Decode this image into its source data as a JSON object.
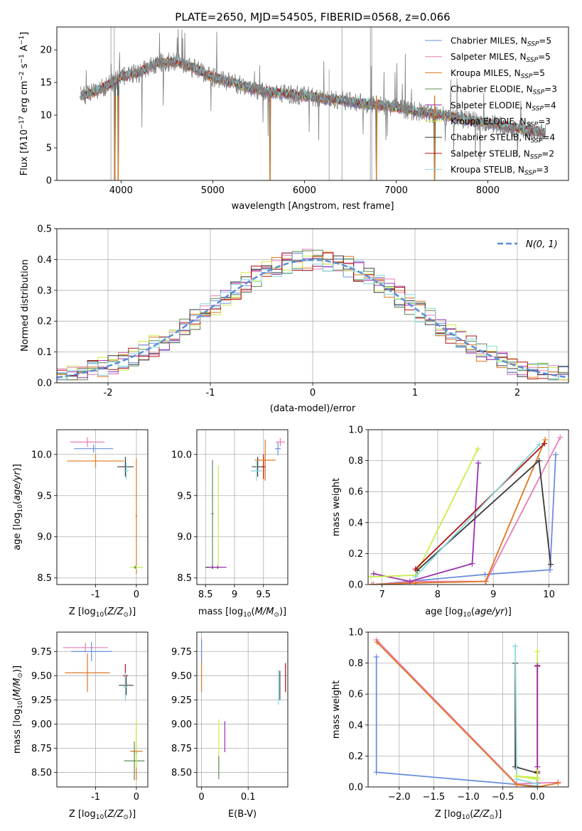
{
  "title": "PLATE=2650, MJD=54505, FIBERID=0568, z=0.066",
  "colors": {
    "Chabrier MILES": "#6a8fdc",
    "Salpeter MILES": "#e87db8",
    "Kroupa MILES": "#e0761f",
    "Chabrier ELODIE": "#5b8c55",
    "Salpeter ELODIE": "#9b2fb0",
    "Kroupa ELODIE": "#c8ee4a",
    "Chabrier STELIB": "#3a3a3a",
    "Salpeter STELIB": "#b01010",
    "Kroupa STELIB": "#86d8dc",
    "data": "#7f7f7f",
    "masked": "#b8b8b8"
  },
  "chart_data": [
    {
      "type": "line",
      "title": "PLATE=2650, MJD=54505, FIBERID=0568, z=0.066",
      "xlabel": "wavelength [Angstrom, rest frame]",
      "ylabel": "Flux [fλ10⁻¹⁷ erg cm⁻² s⁻¹ A⁻¹]",
      "xlim": [
        3300,
        8880
      ],
      "ylim": [
        0,
        23.5
      ],
      "xticks": [
        4000,
        5000,
        6000,
        7000,
        8000
      ],
      "yticks": [
        0,
        5,
        10,
        15,
        20
      ],
      "grid": false,
      "legend_position": "top-right",
      "legend": [
        {
          "label": "Chabrier MILES",
          "nssp": "5"
        },
        {
          "label": "Salpeter MILES",
          "nssp": "5"
        },
        {
          "label": "Kroupa MILES",
          "nssp": "5"
        },
        {
          "label": "Chabrier ELODIE",
          "nssp": "3"
        },
        {
          "label": "Salpeter ELODIE",
          "nssp": "4"
        },
        {
          "label": "Kroupa ELODIE",
          "nssp": "3"
        },
        {
          "label": "Chabrier STELIB",
          "nssp": "4"
        },
        {
          "label": "Salpeter STELIB",
          "nssp": "2"
        },
        {
          "label": "Kroupa STELIB",
          "nssp": "3"
        }
      ],
      "continuum": [
        [
          3600,
          13
        ],
        [
          3700,
          13.5
        ],
        [
          3850,
          14.5
        ],
        [
          4000,
          15.8
        ],
        [
          4200,
          16.5
        ],
        [
          4400,
          18
        ],
        [
          4600,
          18.2
        ],
        [
          4800,
          17.2
        ],
        [
          5000,
          15.8
        ],
        [
          5200,
          15
        ],
        [
          5400,
          14.2
        ],
        [
          5600,
          13.5
        ],
        [
          5800,
          13.3
        ],
        [
          6000,
          13
        ],
        [
          6200,
          12.5
        ],
        [
          6400,
          12.3
        ],
        [
          6600,
          11.9
        ],
        [
          6800,
          11.5
        ],
        [
          7000,
          11.2
        ],
        [
          7200,
          10.6
        ],
        [
          7400,
          10.2
        ],
        [
          7600,
          9.8
        ],
        [
          7800,
          9.2
        ],
        [
          8000,
          8.8
        ],
        [
          8200,
          8.3
        ],
        [
          8400,
          7.8
        ],
        [
          8600,
          7.3
        ]
      ],
      "drops": [
        [
          3933,
          0
        ],
        [
          3968,
          0
        ],
        [
          5625,
          0
        ],
        [
          6785,
          0
        ],
        [
          7420,
          0
        ]
      ]
    },
    {
      "type": "histogram",
      "xlabel": "(data-model)/error",
      "ylabel": "Normed distribution",
      "xlim": [
        -2.5,
        2.5
      ],
      "ylim": [
        0,
        0.5
      ],
      "xticks": [
        -2,
        -1,
        0,
        1,
        2
      ],
      "yticks": [
        0,
        0.1,
        0.2,
        0.3,
        0.4,
        0.5
      ],
      "grid": true,
      "legend_position": "top-right",
      "legend_label": "N(0, 1)",
      "bin_width": 0.1
    },
    {
      "type": "scatter",
      "xlabel": "Z [log10(Z/Z⊙)]",
      "ylabel": "age [log10(age/yr)]",
      "xlim": [
        -1.95,
        0.28
      ],
      "ylim": [
        8.42,
        10.3
      ],
      "xticks": [
        -1,
        0
      ],
      "yticks": [
        8.5,
        9.0,
        9.5,
        10.0
      ],
      "grid": true,
      "points": [
        {
          "model": "Salpeter MILES",
          "x": -1.2,
          "y": 10.15,
          "xerr": 0.42,
          "yerr": 0.06
        },
        {
          "model": "Chabrier MILES",
          "x": -1.05,
          "y": 10.07,
          "xerr": 0.48,
          "yerr": 0.05
        },
        {
          "model": "Kroupa MILES",
          "x": -1.0,
          "y": 9.92,
          "xerr": 0.7,
          "yerr": 0.08
        },
        {
          "model": "Chabrier STELIB",
          "x": -0.27,
          "y": 9.85,
          "xerr": 0.2,
          "yerr": 0.12
        },
        {
          "model": "Kroupa STELIB",
          "x": -0.25,
          "y": 9.8,
          "xerr": 0.06,
          "yerr": 0.1
        },
        {
          "model": "Kroupa MILES",
          "x": 0.0,
          "y": 9.25,
          "xerr": 0.02,
          "yerr": 0.7
        },
        {
          "model": "Kroupa ELODIE",
          "x": 0.0,
          "y": 8.63,
          "xerr": 0.16,
          "yerr": 0.02
        },
        {
          "model": "Chabrier ELODIE",
          "x": -0.03,
          "y": 8.63,
          "xerr": 0.03,
          "yerr": 0.02
        }
      ]
    },
    {
      "type": "scatter",
      "xlabel": "mass [log10(M/M⊙)]",
      "ylabel": "",
      "xlim": [
        8.35,
        9.92
      ],
      "ylim": [
        8.42,
        10.3
      ],
      "xticks": [
        8.5,
        9.0,
        9.5
      ],
      "yticks": [
        8.5,
        9.0,
        9.5,
        10.0
      ],
      "grid": true,
      "points": [
        {
          "model": "Chabrier ELODIE",
          "x": 8.62,
          "y": 9.28,
          "xerr": 0.02,
          "yerr": 0.65
        },
        {
          "model": "Chabrier STELIB",
          "x": 8.62,
          "y": 8.63,
          "xerr": 0.12,
          "yerr": 0.02
        },
        {
          "model": "Kroupa ELODIE",
          "x": 8.72,
          "y": 9.25,
          "xerr": 0.01,
          "yerr": 0.62
        },
        {
          "model": "Salpeter ELODIE",
          "x": 8.71,
          "y": 8.63,
          "xerr": 0.15,
          "yerr": 0.02
        },
        {
          "model": "Chabrier STELIB",
          "x": 9.4,
          "y": 9.85,
          "xerr": 0.1,
          "yerr": 0.12
        },
        {
          "model": "Kroupa STELIB",
          "x": 9.38,
          "y": 9.8,
          "xerr": 0.1,
          "yerr": 0.12
        },
        {
          "model": "Salpeter STELIB",
          "x": 9.5,
          "y": 9.85,
          "xerr": 0.03,
          "yerr": 0.15
        },
        {
          "model": "Kroupa MILES",
          "x": 9.53,
          "y": 9.93,
          "xerr": 0.18,
          "yerr": 0.25
        },
        {
          "model": "Chabrier MILES",
          "x": 9.75,
          "y": 10.07,
          "xerr": 0.05,
          "yerr": 0.08
        },
        {
          "model": "Salpeter MILES",
          "x": 9.79,
          "y": 10.15,
          "xerr": 0.08,
          "yerr": 0.05
        }
      ]
    },
    {
      "type": "line",
      "xlabel": "age [log10(age/yr)]",
      "ylabel": "mass weight",
      "xlim": [
        6.75,
        10.35
      ],
      "ylim": [
        0,
        1.0
      ],
      "xticks": [
        7,
        8,
        9,
        10
      ],
      "yticks": [
        0.0,
        0.2,
        0.4,
        0.6,
        0.8,
        1.0
      ],
      "grid": true,
      "series": [
        {
          "model": "Chabrier MILES",
          "points": [
            [
              6.85,
              0.0
            ],
            [
              8.85,
              0.065
            ],
            [
              10.02,
              0.095
            ],
            [
              10.12,
              0.84
            ]
          ]
        },
        {
          "model": "Salpeter MILES",
          "points": [
            [
              6.85,
              0.0
            ],
            [
              7.63,
              0.02
            ],
            [
              8.87,
              0.02
            ],
            [
              10.2,
              0.95
            ]
          ]
        },
        {
          "model": "Kroupa MILES",
          "points": [
            [
              6.82,
              0.0
            ],
            [
              7.6,
              0.01
            ],
            [
              8.86,
              0.02
            ],
            [
              9.93,
              0.935
            ]
          ]
        },
        {
          "model": "Salpeter ELODIE",
          "points": [
            [
              6.85,
              0.07
            ],
            [
              7.5,
              0.02
            ],
            [
              8.62,
              0.135
            ],
            [
              8.73,
              0.785
            ]
          ]
        },
        {
          "model": "Kroupa ELODIE",
          "points": [
            [
              6.8,
              0.05
            ],
            [
              7.6,
              0.06
            ],
            [
              8.72,
              0.875
            ]
          ]
        },
        {
          "model": "Chabrier STELIB",
          "points": [
            [
              7.63,
              0.09
            ],
            [
              9.82,
              0.8
            ],
            [
              10.03,
              0.13
            ]
          ]
        },
        {
          "model": "Salpeter STELIB",
          "points": [
            [
              7.6,
              0.1
            ],
            [
              9.92,
              0.91
            ]
          ]
        },
        {
          "model": "Kroupa STELIB",
          "points": [
            [
              7.6,
              0.05
            ],
            [
              9.83,
              0.905
            ]
          ]
        }
      ]
    },
    {
      "type": "scatter",
      "xlabel": "Z [log10(Z/Z⊙)]",
      "ylabel": "mass [log10(M/M⊙)]",
      "xlim": [
        -1.95,
        0.28
      ],
      "ylim": [
        8.35,
        9.95
      ],
      "xticks": [
        -1,
        0
      ],
      "yticks": [
        8.5,
        8.75,
        9.0,
        9.25,
        9.5,
        9.75
      ],
      "grid": true,
      "points": [
        {
          "model": "Salpeter MILES",
          "x": -1.25,
          "y": 9.79,
          "xerr": 0.55,
          "yerr": 0.05
        },
        {
          "model": "Chabrier MILES",
          "x": -1.1,
          "y": 9.75,
          "xerr": 0.5,
          "yerr": 0.1
        },
        {
          "model": "Kroupa MILES",
          "x": -1.2,
          "y": 9.53,
          "xerr": 0.55,
          "yerr": 0.2
        },
        {
          "model": "Salpeter STELIB",
          "x": -0.27,
          "y": 9.5,
          "xerr": 0.06,
          "yerr": 0.12
        },
        {
          "model": "Chabrier STELIB",
          "x": -0.25,
          "y": 9.4,
          "xerr": 0.18,
          "yerr": 0.1
        },
        {
          "model": "Kroupa STELIB",
          "x": -0.27,
          "y": 9.38,
          "xerr": 0.04,
          "yerr": 0.15
        },
        {
          "model": "Kroupa MILES",
          "x": 0.0,
          "y": 8.72,
          "xerr": 0.15,
          "yerr": 0.3
        },
        {
          "model": "Salpeter ELODIE",
          "x": 0.0,
          "y": 8.71,
          "xerr": 0.02,
          "yerr": 0.03
        },
        {
          "model": "Chabrier ELODIE",
          "x": -0.05,
          "y": 8.62,
          "xerr": 0.25,
          "yerr": 0.2
        },
        {
          "model": "Kroupa ELODIE",
          "x": 0.0,
          "y": 8.8,
          "xerr": 0.01,
          "yerr": 0.25
        }
      ]
    },
    {
      "type": "scatter",
      "xlabel": "E(B-V)",
      "ylabel": "",
      "xlim": [
        -0.01,
        0.185
      ],
      "ylim": [
        8.35,
        9.95
      ],
      "xticks": [
        0.0,
        0.1
      ],
      "yticks": [
        8.5,
        8.75,
        9.0,
        9.25,
        9.5,
        9.75
      ],
      "grid": true,
      "points": [
        {
          "model": "Salpeter MILES",
          "x": 0.0,
          "y": 9.79,
          "yerr": 0.1
        },
        {
          "model": "Kroupa MILES",
          "x": 0.0,
          "y": 9.53,
          "yerr": 0.2
        },
        {
          "model": "Chabrier MILES",
          "x": 0.0,
          "y": 9.75,
          "yerr": 0.12
        },
        {
          "model": "Kroupa ELODIE",
          "x": 0.037,
          "y": 8.8,
          "yerr": 0.25
        },
        {
          "model": "Chabrier ELODIE",
          "x": 0.037,
          "y": 8.55,
          "yerr": 0.12
        },
        {
          "model": "Salpeter ELODIE",
          "x": 0.05,
          "y": 8.87,
          "yerr": 0.16
        },
        {
          "model": "Kroupa STELIB",
          "x": 0.165,
          "y": 9.38,
          "yerr": 0.18
        },
        {
          "model": "Chabrier STELIB",
          "x": 0.168,
          "y": 9.4,
          "yerr": 0.15
        },
        {
          "model": "Salpeter STELIB",
          "x": 0.18,
          "y": 9.48,
          "yerr": 0.15
        }
      ]
    },
    {
      "type": "line",
      "xlabel": "Z [log10(Z/Z⊙)]",
      "ylabel": "mass weight",
      "xlim": [
        -2.45,
        0.45
      ],
      "ylim": [
        0,
        1.0
      ],
      "xticks": [
        -2.0,
        -1.5,
        -1.0,
        -0.5,
        0.0
      ],
      "yticks": [
        0.0,
        0.2,
        0.4,
        0.6,
        0.8,
        1.0
      ],
      "grid": true,
      "series": [
        {
          "model": "Chabrier MILES",
          "points": [
            [
              -2.33,
              0.84
            ],
            [
              -2.33,
              0.095
            ],
            [
              0.0,
              0.005
            ],
            [
              0.0,
              0.0
            ]
          ]
        },
        {
          "model": "Salpeter MILES",
          "points": [
            [
              -2.33,
              0.95
            ],
            [
              -0.3,
              0.02
            ],
            [
              0.3,
              0.03
            ]
          ]
        },
        {
          "model": "Kroupa MILES",
          "points": [
            [
              -2.32,
              0.935
            ],
            [
              -0.3,
              0.015
            ],
            [
              0.0,
              0.0
            ],
            [
              0.3,
              0.025
            ]
          ]
        },
        {
          "model": "Chabrier STELIB",
          "points": [
            [
              -0.32,
              0.8
            ],
            [
              -0.32,
              0.13
            ],
            [
              0.0,
              0.09
            ],
            [
              0.0,
              0.0
            ]
          ]
        },
        {
          "model": "Salpeter STELIB",
          "points": [
            [
              0.0,
              0.78
            ],
            [
              0.0,
              0.1
            ]
          ]
        },
        {
          "model": "Kroupa STELIB",
          "points": [
            [
              -0.32,
              0.91
            ],
            [
              -0.3,
              0.05
            ],
            [
              0.0,
              0.02
            ]
          ]
        },
        {
          "model": "Kroupa ELODIE",
          "points": [
            [
              0.0,
              0.875
            ],
            [
              0.0,
              0.05
            ],
            [
              -0.3,
              0.07
            ],
            [
              0.0,
              0.06
            ]
          ]
        },
        {
          "model": "Salpeter ELODIE",
          "points": [
            [
              0.0,
              0.785
            ],
            [
              0.0,
              0.13
            ]
          ]
        }
      ]
    }
  ]
}
